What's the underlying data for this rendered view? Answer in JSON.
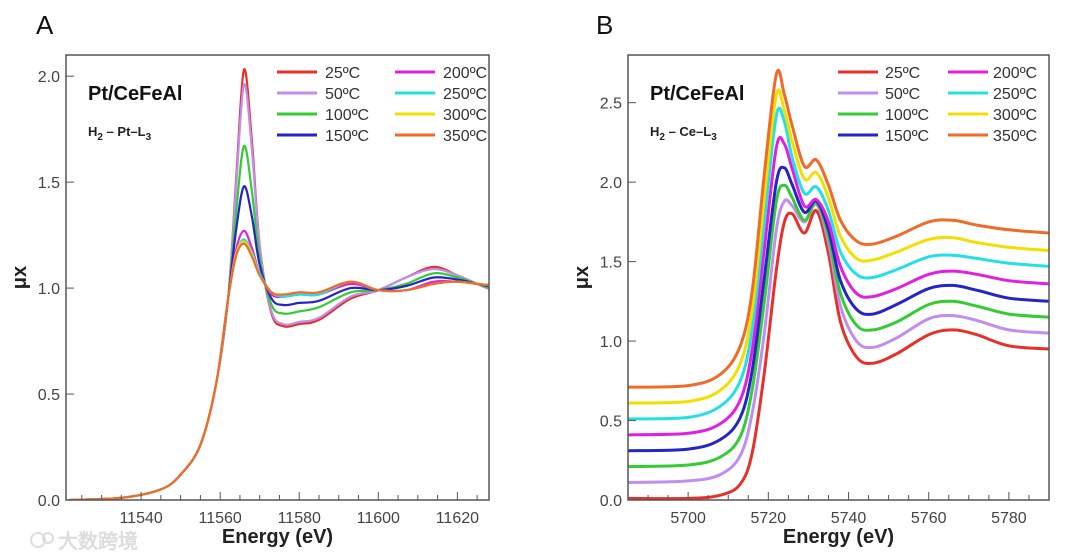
{
  "watermark": "大数跨境",
  "chart_data": [
    {
      "panel": "A",
      "type": "line",
      "title": "Pt/CeFeAl",
      "subtitle_parts": [
        "H",
        "2",
        " – Pt–L",
        "3"
      ],
      "xlabel": "Energy (eV)",
      "ylabel": "μx",
      "xlim": [
        11521,
        11628
      ],
      "ylim": [
        0,
        2.1
      ],
      "xticks": [
        11540,
        11560,
        11580,
        11600,
        11620
      ],
      "xminor_step": 5,
      "yticks": [
        "0.0",
        "0.5",
        "1.0",
        "1.5",
        "2.0"
      ],
      "legend_position": "top-right",
      "grid": false,
      "x": [
        11522,
        11535,
        11545,
        11550,
        11555,
        11559,
        11562,
        11564,
        11566,
        11568,
        11570,
        11573,
        11576,
        11580,
        11585,
        11593,
        11600,
        11607,
        11614,
        11620,
        11625,
        11630
      ],
      "series": [
        {
          "name": "25ºC",
          "color": "#e8302a",
          "values": [
            0,
            0.01,
            0.05,
            0.12,
            0.26,
            0.55,
            0.95,
            1.5,
            2.03,
            1.7,
            1.2,
            0.88,
            0.82,
            0.83,
            0.85,
            0.95,
            0.99,
            1.05,
            1.1,
            1.06,
            1.02,
            0.98
          ]
        },
        {
          "name": "50ºC",
          "color": "#c08ef0",
          "values": [
            0,
            0.01,
            0.05,
            0.12,
            0.26,
            0.55,
            0.95,
            1.47,
            1.96,
            1.66,
            1.19,
            0.89,
            0.83,
            0.84,
            0.86,
            0.96,
            0.99,
            1.05,
            1.09,
            1.06,
            1.02,
            0.98
          ]
        },
        {
          "name": "100ºC",
          "color": "#33cc33",
          "values": [
            0,
            0.01,
            0.05,
            0.12,
            0.26,
            0.55,
            0.95,
            1.35,
            1.67,
            1.46,
            1.14,
            0.92,
            0.88,
            0.89,
            0.91,
            0.98,
            0.99,
            1.02,
            1.07,
            1.05,
            1.02,
            0.99
          ]
        },
        {
          "name": "150ºC",
          "color": "#2424c8",
          "values": [
            0,
            0.01,
            0.05,
            0.12,
            0.26,
            0.55,
            0.95,
            1.27,
            1.48,
            1.34,
            1.11,
            0.95,
            0.92,
            0.93,
            0.94,
            1.0,
            0.99,
            1.01,
            1.05,
            1.04,
            1.02,
            1.0
          ]
        },
        {
          "name": "200ºC",
          "color": "#e020e0",
          "values": [
            0,
            0.01,
            0.05,
            0.12,
            0.26,
            0.55,
            0.95,
            1.18,
            1.27,
            1.19,
            1.07,
            0.97,
            0.96,
            0.97,
            0.97,
            1.02,
            0.99,
            0.99,
            1.03,
            1.03,
            1.02,
            1.01
          ]
        },
        {
          "name": "250ºC",
          "color": "#22e0e6",
          "values": [
            0,
            0.01,
            0.05,
            0.12,
            0.26,
            0.55,
            0.95,
            1.16,
            1.23,
            1.17,
            1.07,
            0.98,
            0.96,
            0.97,
            0.97,
            1.03,
            0.99,
            0.99,
            1.02,
            1.03,
            1.02,
            1.01
          ]
        },
        {
          "name": "300ºC",
          "color": "#f0e000",
          "values": [
            0,
            0.01,
            0.05,
            0.12,
            0.26,
            0.55,
            0.95,
            1.16,
            1.22,
            1.16,
            1.06,
            0.98,
            0.97,
            0.98,
            0.98,
            1.03,
            0.99,
            0.99,
            1.02,
            1.03,
            1.02,
            1.01
          ]
        },
        {
          "name": "350ºC",
          "color": "#f06a2a",
          "values": [
            0,
            0.01,
            0.05,
            0.12,
            0.26,
            0.55,
            0.95,
            1.15,
            1.21,
            1.15,
            1.06,
            0.98,
            0.97,
            0.98,
            0.98,
            1.03,
            0.99,
            0.99,
            1.02,
            1.03,
            1.02,
            1.01
          ]
        }
      ]
    },
    {
      "panel": "B",
      "type": "line",
      "title": "Pt/CeFeAl",
      "subtitle_parts": [
        "H",
        "2",
        " – Ce–L",
        "3"
      ],
      "xlabel": "Energy (eV)",
      "ylabel": "μx",
      "xlim": [
        5685,
        5790
      ],
      "ylim": [
        0,
        2.8
      ],
      "xticks": [
        5700,
        5720,
        5740,
        5760,
        5780
      ],
      "xminor_step": 5,
      "yticks": [
        "0.0",
        "0.5",
        "1.0",
        "1.5",
        "2.0",
        "2.5"
      ],
      "legend_position": "top-right",
      "grid": false,
      "x": [
        5685,
        5700,
        5708,
        5713,
        5716,
        5719,
        5722,
        5724,
        5726,
        5729,
        5732,
        5735,
        5738,
        5742,
        5746,
        5752,
        5760,
        5766,
        5772,
        5780,
        5790
      ],
      "series": [
        {
          "name": "25ºC",
          "color": "#e8302a",
          "values": [
            0.01,
            0.01,
            0.03,
            0.1,
            0.3,
            0.8,
            1.45,
            1.75,
            1.8,
            1.68,
            1.82,
            1.55,
            1.12,
            0.9,
            0.86,
            0.92,
            1.04,
            1.07,
            1.04,
            0.97,
            0.95
          ]
        },
        {
          "name": "50ºC",
          "color": "#c08ef0",
          "values": [
            0.11,
            0.12,
            0.16,
            0.28,
            0.55,
            1.05,
            1.7,
            1.88,
            1.85,
            1.75,
            1.86,
            1.62,
            1.22,
            1.0,
            0.96,
            1.02,
            1.14,
            1.16,
            1.13,
            1.07,
            1.05
          ]
        },
        {
          "name": "100ºC",
          "color": "#33cc33",
          "values": [
            0.21,
            0.22,
            0.27,
            0.4,
            0.7,
            1.25,
            1.88,
            1.98,
            1.9,
            1.76,
            1.87,
            1.66,
            1.3,
            1.1,
            1.07,
            1.12,
            1.23,
            1.25,
            1.22,
            1.17,
            1.15
          ]
        },
        {
          "name": "150ºC",
          "color": "#2424c8",
          "values": [
            0.31,
            0.32,
            0.38,
            0.52,
            0.82,
            1.4,
            2.0,
            2.09,
            1.98,
            1.81,
            1.88,
            1.7,
            1.38,
            1.2,
            1.17,
            1.23,
            1.33,
            1.35,
            1.32,
            1.27,
            1.25
          ]
        },
        {
          "name": "200ºC",
          "color": "#e020e0",
          "values": [
            0.41,
            0.42,
            0.48,
            0.63,
            0.95,
            1.58,
            2.22,
            2.24,
            2.08,
            1.85,
            1.89,
            1.75,
            1.47,
            1.3,
            1.28,
            1.33,
            1.42,
            1.44,
            1.42,
            1.38,
            1.36
          ]
        },
        {
          "name": "250ºC",
          "color": "#22e0e6",
          "values": [
            0.51,
            0.52,
            0.59,
            0.75,
            1.08,
            1.75,
            2.42,
            2.38,
            2.15,
            1.93,
            1.97,
            1.82,
            1.56,
            1.42,
            1.4,
            1.45,
            1.53,
            1.54,
            1.52,
            1.49,
            1.47
          ]
        },
        {
          "name": "300ºC",
          "color": "#f0e000",
          "values": [
            0.61,
            0.62,
            0.69,
            0.86,
            1.2,
            1.9,
            2.55,
            2.45,
            2.25,
            2.02,
            2.06,
            1.9,
            1.66,
            1.52,
            1.51,
            1.56,
            1.64,
            1.65,
            1.62,
            1.59,
            1.57
          ]
        },
        {
          "name": "350ºC",
          "color": "#f06a2a",
          "values": [
            0.71,
            0.72,
            0.79,
            0.97,
            1.32,
            2.05,
            2.68,
            2.55,
            2.35,
            2.1,
            2.14,
            1.98,
            1.76,
            1.63,
            1.61,
            1.66,
            1.75,
            1.76,
            1.73,
            1.7,
            1.68
          ]
        }
      ]
    }
  ]
}
